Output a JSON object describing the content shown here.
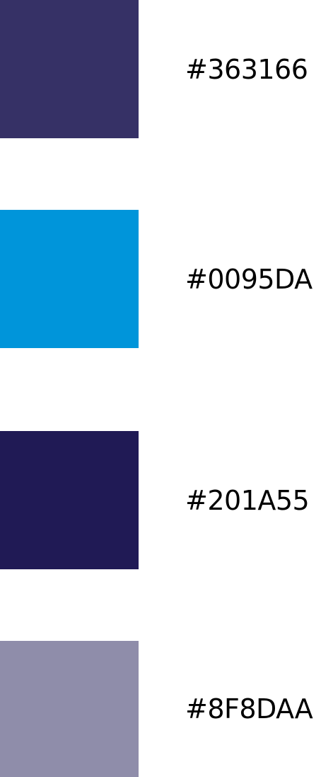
{
  "swatches": [
    {
      "color": "#363166",
      "label": "#363166"
    },
    {
      "color": "#0095DA",
      "label": "#0095DA"
    },
    {
      "color": "#201A55",
      "label": "#201A55"
    },
    {
      "color": "#8F8DAA",
      "label": "#8F8DAA"
    }
  ]
}
